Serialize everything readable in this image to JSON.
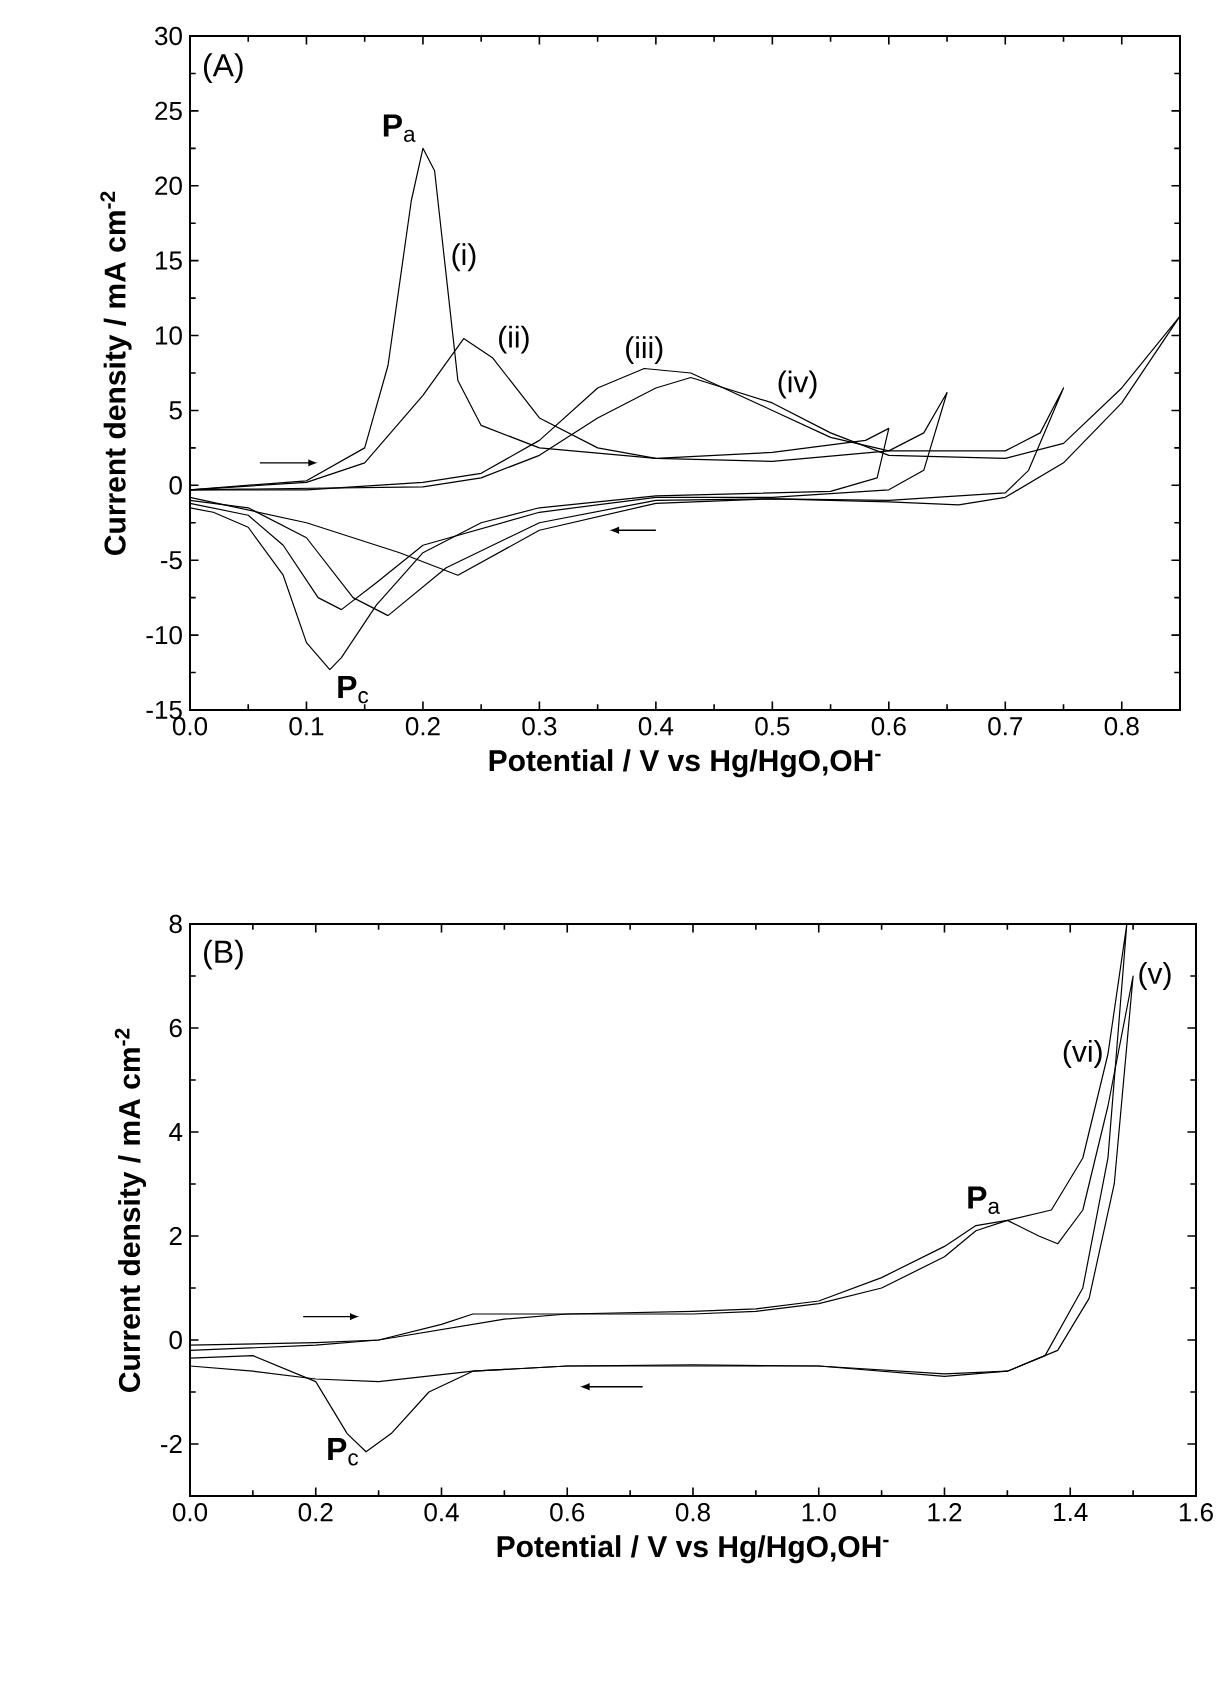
{
  "chart_data": [
    {
      "type": "line",
      "title": "(A)",
      "xlabel": "Potential / V vs  Hg/HgO,OH$^{-}$",
      "ylabel": "Current density / mA cm$^{-2}$",
      "xlim": [
        0,
        0.85
      ],
      "ylim": [
        -15,
        30
      ],
      "xticks": [
        {
          "value": 0,
          "label": "0.0"
        },
        {
          "value": 0.1,
          "label": "0.1"
        },
        {
          "value": 0.2,
          "label": "0.2"
        },
        {
          "value": 0.3,
          "label": "0.3"
        },
        {
          "value": 0.4,
          "label": "0.4"
        },
        {
          "value": 0.5,
          "label": "0.5"
        },
        {
          "value": 0.6,
          "label": "0.6"
        },
        {
          "value": 0.7,
          "label": "0.7"
        },
        {
          "value": 0.8,
          "label": "0.8"
        }
      ],
      "yticks": [
        -15,
        -10,
        -5,
        0,
        5,
        10,
        15,
        20,
        25,
        30
      ],
      "grid": false,
      "marker": "none",
      "line_style": "solid",
      "series": [
        {
          "name": "(i)",
          "color": "#000000",
          "x": [
            0,
            0.1,
            0.15,
            0.17,
            0.19,
            0.2,
            0.21,
            0.22,
            0.23,
            0.25,
            0.3,
            0.4,
            0.5,
            0.58,
            0.6,
            0.59,
            0.55,
            0.4,
            0.3,
            0.25,
            0.2,
            0.16,
            0.13,
            0.12,
            0.1,
            0.08,
            0.05,
            0.02,
            0
          ],
          "values": [
            -0.3,
            0.3,
            2.5,
            8,
            19,
            22.5,
            21,
            14,
            7,
            4,
            2.5,
            1.8,
            2.2,
            3,
            3.8,
            0.5,
            -0.4,
            -0.7,
            -1.5,
            -2.5,
            -4.5,
            -8,
            -11.5,
            -12.3,
            -10.5,
            -6,
            -2.8,
            -1.8,
            -1.5
          ]
        },
        {
          "name": "(ii)",
          "color": "#000000",
          "x": [
            0,
            0.1,
            0.15,
            0.2,
            0.235,
            0.26,
            0.3,
            0.35,
            0.4,
            0.5,
            0.6,
            0.63,
            0.65,
            0.63,
            0.6,
            0.5,
            0.4,
            0.3,
            0.2,
            0.16,
            0.13,
            0.11,
            0.08,
            0.05,
            0
          ],
          "values": [
            -0.3,
            0.2,
            1.5,
            6,
            9.8,
            8.5,
            4.5,
            2.5,
            1.8,
            1.6,
            2.3,
            3.5,
            6.2,
            1,
            -0.3,
            -0.8,
            -0.8,
            -1.8,
            -4,
            -6.5,
            -8.3,
            -7.5,
            -4,
            -2,
            -1.2
          ]
        },
        {
          "name": "(iii)",
          "color": "#000000",
          "x": [
            0,
            0.1,
            0.2,
            0.25,
            0.3,
            0.35,
            0.39,
            0.43,
            0.5,
            0.55,
            0.6,
            0.7,
            0.73,
            0.75,
            0.72,
            0.7,
            0.6,
            0.5,
            0.4,
            0.3,
            0.22,
            0.17,
            0.14,
            0.1,
            0.05,
            0
          ],
          "values": [
            -0.3,
            -0.3,
            0.2,
            0.8,
            3,
            6.5,
            7.8,
            7.5,
            5,
            3.2,
            2.3,
            2.3,
            3.5,
            6.5,
            1,
            -0.5,
            -1,
            -0.9,
            -1,
            -2.5,
            -5.5,
            -8.7,
            -7.5,
            -3.5,
            -1.5,
            -1
          ]
        },
        {
          "name": "(iv)",
          "color": "#000000",
          "x": [
            0,
            0.2,
            0.25,
            0.3,
            0.35,
            0.4,
            0.43,
            0.5,
            0.55,
            0.6,
            0.7,
            0.75,
            0.8,
            0.85,
            0.8,
            0.75,
            0.7,
            0.66,
            0.6,
            0.5,
            0.4,
            0.3,
            0.23,
            0.18,
            0.1,
            0
          ],
          "values": [
            -0.3,
            -0.1,
            0.5,
            2,
            4.5,
            6.5,
            7.2,
            5.5,
            3.5,
            2,
            1.8,
            2.8,
            6.5,
            11.3,
            5.5,
            1.5,
            -0.8,
            -1.3,
            -1.1,
            -0.9,
            -1.2,
            -3,
            -6,
            -4.5,
            -2.5,
            -0.8
          ]
        }
      ],
      "annotations": [
        "**P**$_{a}$",
        "**P**$_{c}$"
      ]
    },
    {
      "type": "line",
      "title": "(B)",
      "xlabel": "Potential / V vs  Hg/HgO,OH$^{-}$",
      "ylabel": "Current density / mA cm$^{-2}$",
      "xlim": [
        0,
        1.6
      ],
      "ylim": [
        -3,
        8
      ],
      "xticks": [
        {
          "value": 0,
          "label": "0.0"
        },
        {
          "value": 0.2,
          "label": "0.2"
        },
        {
          "value": 0.4,
          "label": "0.4"
        },
        {
          "value": 0.6,
          "label": "0.6"
        },
        {
          "value": 0.8,
          "label": "0.8"
        },
        {
          "value": 1.0,
          "label": "1.0"
        },
        {
          "value": 1.2,
          "label": "1.2"
        },
        {
          "value": 1.4,
          "label": "1.4"
        },
        {
          "value": 1.6,
          "label": "1.6"
        }
      ],
      "yticks": [
        -2,
        0,
        2,
        4,
        6,
        8
      ],
      "grid": false,
      "marker": "none",
      "line_style": "solid",
      "series": [
        {
          "name": "(v)",
          "color": "#000000",
          "x": [
            0,
            0.2,
            0.3,
            0.4,
            0.5,
            0.6,
            0.8,
            0.9,
            1.0,
            1.1,
            1.2,
            1.25,
            1.3,
            1.35,
            1.38,
            1.42,
            1.46,
            1.5,
            1.47,
            1.43,
            1.38,
            1.3,
            1.2,
            1.0,
            0.8,
            0.6,
            0.45,
            0.38,
            0.32,
            0.28,
            0.25,
            0.2,
            0.1,
            0
          ],
          "values": [
            -0.2,
            -0.1,
            0,
            0.2,
            0.4,
            0.5,
            0.5,
            0.55,
            0.7,
            1.0,
            1.6,
            2.1,
            2.3,
            2.0,
            1.85,
            2.5,
            4.5,
            7.0,
            3,
            0.8,
            -0.2,
            -0.6,
            -0.65,
            -0.5,
            -0.48,
            -0.5,
            -0.6,
            -1,
            -1.8,
            -2.15,
            -1.8,
            -0.8,
            -0.3,
            -0.35
          ]
        },
        {
          "name": "(vi)",
          "color": "#000000",
          "x": [
            0,
            0.2,
            0.3,
            0.4,
            0.45,
            0.6,
            0.8,
            0.9,
            1.0,
            1.1,
            1.2,
            1.25,
            1.3,
            1.37,
            1.42,
            1.46,
            1.49,
            1.46,
            1.42,
            1.36,
            1.3,
            1.2,
            1.0,
            0.6,
            0.45,
            0.3,
            0.2,
            0.1,
            0
          ],
          "values": [
            -0.1,
            -0.05,
            0,
            0.3,
            0.5,
            0.5,
            0.55,
            0.6,
            0.75,
            1.2,
            1.8,
            2.2,
            2.3,
            2.5,
            3.5,
            5.5,
            8,
            3.5,
            1.0,
            -0.3,
            -0.6,
            -0.7,
            -0.5,
            -0.5,
            -0.6,
            -0.8,
            -0.75,
            -0.6,
            -0.5
          ]
        }
      ],
      "annotations": [
        "**P**$_{a}$",
        "**P**$_{c}$"
      ]
    }
  ]
}
